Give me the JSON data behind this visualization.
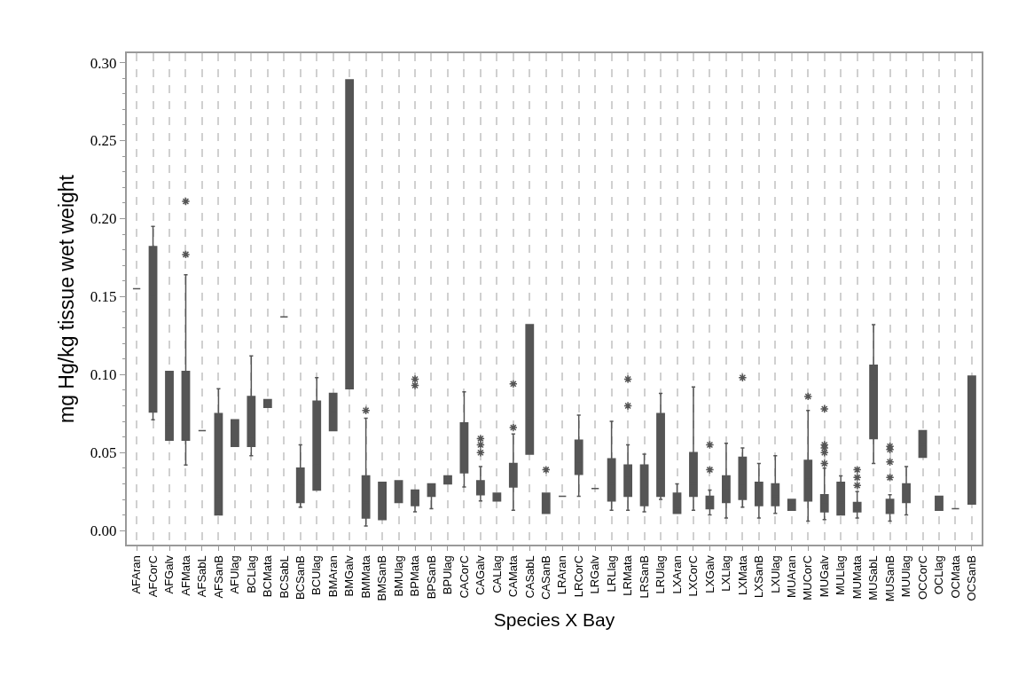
{
  "chart_data": {
    "type": "box",
    "xlabel": "Species X Bay",
    "ylabel": "mg Hg/kg tissue wet weight",
    "categories": [
      "AFAran",
      "AFCorC",
      "AFGalv",
      "AFMata",
      "AFSabL",
      "AFSanB",
      "AFUlag",
      "BCLlag",
      "BCMata",
      "BCSabL",
      "BCSanB",
      "BCUlag",
      "BMAran",
      "BMGalv",
      "BMMata",
      "BMSanB",
      "BMUlag",
      "BPMata",
      "BPSanB",
      "BPUlag",
      "CACorC",
      "CAGalv",
      "CALlag",
      "CAMata",
      "CASabL",
      "CASanB",
      "LRAran",
      "LRCorC",
      "LRGalv",
      "LRLlag",
      "LRMata",
      "LRSanB",
      "LRUlag",
      "LXAran",
      "LXCorC",
      "LXGalv",
      "LXLlag",
      "LXMata",
      "LXSanB",
      "LXUlag",
      "MUAran",
      "MUCorC",
      "MUGalv",
      "MULlag",
      "MUMata",
      "MUSabL",
      "MUSanB",
      "MUUlag",
      "OCCorC",
      "OCLlag",
      "OCMata",
      "OCSanB"
    ],
    "color": "#555555",
    "boxes": [
      {
        "low": 0.155,
        "q1": 0.155,
        "median": 0.155,
        "q3": 0.155,
        "high": 0.155
      },
      {
        "low": 0.071,
        "q1": 0.076,
        "median": 0.15,
        "q3": 0.182,
        "high": 0.195
      },
      {
        "low": 0.058,
        "q1": 0.058,
        "median": 0.068,
        "q3": 0.102,
        "high": 0.102
      },
      {
        "low": 0.042,
        "q1": 0.058,
        "median": 0.078,
        "q3": 0.102,
        "high": 0.164,
        "outliers": [
          0.211,
          0.177
        ]
      },
      {
        "low": 0.064,
        "q1": 0.064,
        "median": 0.064,
        "q3": 0.064,
        "high": 0.064
      },
      {
        "low": 0.01,
        "q1": 0.01,
        "median": 0.022,
        "q3": 0.075,
        "high": 0.091
      },
      {
        "low": 0.054,
        "q1": 0.054,
        "median": 0.056,
        "q3": 0.071,
        "high": 0.071
      },
      {
        "low": 0.048,
        "q1": 0.054,
        "median": 0.06,
        "q3": 0.086,
        "high": 0.112
      },
      {
        "low": 0.079,
        "q1": 0.079,
        "median": 0.081,
        "q3": 0.084,
        "high": 0.084
      },
      {
        "low": 0.137,
        "q1": 0.137,
        "median": 0.137,
        "q3": 0.137,
        "high": 0.137
      },
      {
        "low": 0.015,
        "q1": 0.018,
        "median": 0.029,
        "q3": 0.04,
        "high": 0.055
      },
      {
        "low": 0.026,
        "q1": 0.026,
        "median": 0.042,
        "q3": 0.083,
        "high": 0.098
      },
      {
        "low": 0.064,
        "q1": 0.064,
        "median": 0.076,
        "q3": 0.088,
        "high": 0.088
      },
      {
        "low": 0.091,
        "q1": 0.091,
        "median": 0.199,
        "q3": 0.289,
        "high": 0.289
      },
      {
        "low": 0.003,
        "q1": 0.008,
        "median": 0.018,
        "q3": 0.035,
        "high": 0.072,
        "outliers": [
          0.077
        ]
      },
      {
        "low": 0.007,
        "q1": 0.007,
        "median": 0.024,
        "q3": 0.031,
        "high": 0.031
      },
      {
        "low": 0.018,
        "q1": 0.018,
        "median": 0.024,
        "q3": 0.032,
        "high": 0.032
      },
      {
        "low": 0.012,
        "q1": 0.016,
        "median": 0.021,
        "q3": 0.026,
        "high": 0.026,
        "outliers": [
          0.097,
          0.093
        ]
      },
      {
        "low": 0.014,
        "q1": 0.022,
        "median": 0.026,
        "q3": 0.03,
        "high": 0.03
      },
      {
        "low": 0.03,
        "q1": 0.03,
        "median": 0.033,
        "q3": 0.035,
        "high": 0.035
      },
      {
        "low": 0.028,
        "q1": 0.037,
        "median": 0.049,
        "q3": 0.069,
        "high": 0.089
      },
      {
        "low": 0.019,
        "q1": 0.023,
        "median": 0.028,
        "q3": 0.032,
        "high": 0.041,
        "outliers": [
          0.059,
          0.055,
          0.05
        ]
      },
      {
        "low": 0.019,
        "q1": 0.019,
        "median": 0.021,
        "q3": 0.024,
        "high": 0.024
      },
      {
        "low": 0.013,
        "q1": 0.028,
        "median": 0.037,
        "q3": 0.043,
        "high": 0.062,
        "outliers": [
          0.094,
          0.066
        ]
      },
      {
        "low": 0.049,
        "q1": 0.049,
        "median": 0.072,
        "q3": 0.132,
        "high": 0.132
      },
      {
        "low": 0.011,
        "q1": 0.011,
        "median": 0.016,
        "q3": 0.024,
        "high": 0.024,
        "outliers": [
          0.039
        ]
      },
      {
        "low": 0.022,
        "q1": 0.022,
        "median": 0.022,
        "q3": 0.022,
        "high": 0.022
      },
      {
        "low": 0.022,
        "q1": 0.036,
        "median": 0.044,
        "q3": 0.058,
        "high": 0.074
      },
      {
        "low": 0.027,
        "q1": 0.027,
        "median": 0.027,
        "q3": 0.027,
        "high": 0.027
      },
      {
        "low": 0.013,
        "q1": 0.019,
        "median": 0.03,
        "q3": 0.046,
        "high": 0.07
      },
      {
        "low": 0.013,
        "q1": 0.022,
        "median": 0.034,
        "q3": 0.042,
        "high": 0.055,
        "outliers": [
          0.097,
          0.08
        ]
      },
      {
        "low": 0.012,
        "q1": 0.016,
        "median": 0.028,
        "q3": 0.042,
        "high": 0.049
      },
      {
        "low": 0.02,
        "q1": 0.022,
        "median": 0.033,
        "q3": 0.075,
        "high": 0.088
      },
      {
        "low": 0.011,
        "q1": 0.011,
        "median": 0.014,
        "q3": 0.024,
        "high": 0.03
      },
      {
        "low": 0.013,
        "q1": 0.022,
        "median": 0.03,
        "q3": 0.05,
        "high": 0.092
      },
      {
        "low": 0.01,
        "q1": 0.014,
        "median": 0.018,
        "q3": 0.022,
        "high": 0.026,
        "outliers": [
          0.055,
          0.039
        ]
      },
      {
        "low": 0.008,
        "q1": 0.018,
        "median": 0.026,
        "q3": 0.035,
        "high": 0.056
      },
      {
        "low": 0.015,
        "q1": 0.02,
        "median": 0.029,
        "q3": 0.047,
        "high": 0.053,
        "outliers": [
          0.098
        ]
      },
      {
        "low": 0.008,
        "q1": 0.016,
        "median": 0.024,
        "q3": 0.031,
        "high": 0.043
      },
      {
        "low": 0.011,
        "q1": 0.016,
        "median": 0.022,
        "q3": 0.03,
        "high": 0.048
      },
      {
        "low": 0.013,
        "q1": 0.013,
        "median": 0.017,
        "q3": 0.02,
        "high": 0.02
      },
      {
        "low": 0.006,
        "q1": 0.019,
        "median": 0.033,
        "q3": 0.045,
        "high": 0.077,
        "outliers": [
          0.086
        ]
      },
      {
        "low": 0.007,
        "q1": 0.012,
        "median": 0.017,
        "q3": 0.023,
        "high": 0.04,
        "outliers": [
          0.078,
          0.055,
          0.053,
          0.05,
          0.043
        ]
      },
      {
        "low": 0.01,
        "q1": 0.01,
        "median": 0.018,
        "q3": 0.031,
        "high": 0.035
      },
      {
        "low": 0.008,
        "q1": 0.012,
        "median": 0.014,
        "q3": 0.018,
        "high": 0.025,
        "outliers": [
          0.039,
          0.034,
          0.029
        ]
      },
      {
        "low": 0.043,
        "q1": 0.059,
        "median": 0.096,
        "q3": 0.106,
        "high": 0.132
      },
      {
        "low": 0.006,
        "q1": 0.011,
        "median": 0.014,
        "q3": 0.02,
        "high": 0.023,
        "outliers": [
          0.054,
          0.052,
          0.044,
          0.034
        ]
      },
      {
        "low": 0.01,
        "q1": 0.018,
        "median": 0.024,
        "q3": 0.03,
        "high": 0.041
      },
      {
        "low": 0.047,
        "q1": 0.047,
        "median": 0.055,
        "q3": 0.064,
        "high": 0.064
      },
      {
        "low": 0.013,
        "q1": 0.013,
        "median": 0.015,
        "q3": 0.022,
        "high": 0.022
      },
      {
        "low": 0.014,
        "q1": 0.014,
        "median": 0.014,
        "q3": 0.014,
        "high": 0.014
      },
      {
        "low": 0.017,
        "q1": 0.017,
        "median": 0.058,
        "q3": 0.099,
        "high": 0.099
      }
    ],
    "ylim": [
      -0.009,
      0.306
    ],
    "yticks": [
      {
        "value": 0,
        "label": "0.00"
      },
      {
        "value": 0.05,
        "label": "0.05"
      },
      {
        "value": 0.1,
        "label": "0.10"
      },
      {
        "value": 0.15,
        "label": "0.15"
      },
      {
        "value": 0.2,
        "label": "0.20"
      },
      {
        "value": 0.25,
        "label": "0.25"
      },
      {
        "value": 0.3,
        "label": "0.30"
      }
    ],
    "grid": "x",
    "marker": "star"
  }
}
